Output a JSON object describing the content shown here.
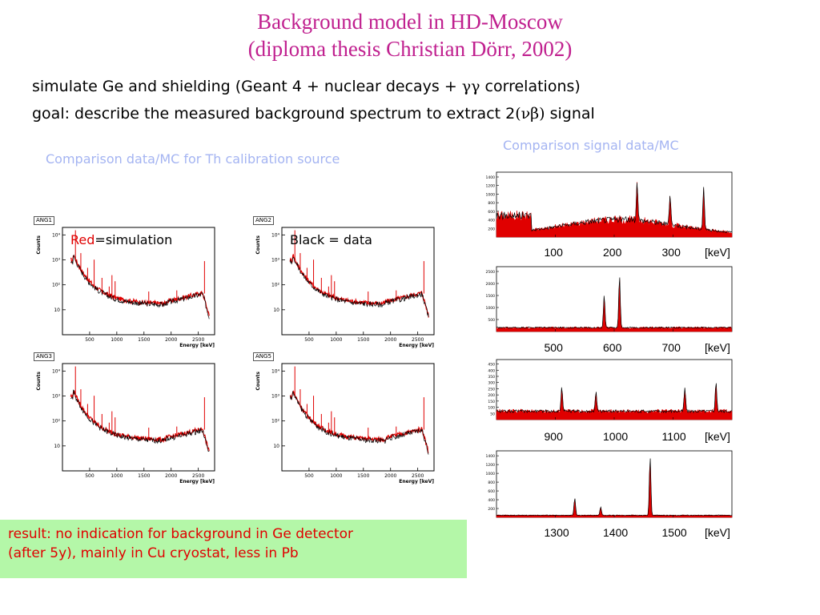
{
  "slide": {
    "title_line1": "Background model in HD-Moscow",
    "title_line2": "(diploma thesis Christian Dörr, 2002)",
    "line1_a": "simulate Ge and shielding (Geant 4 + nuclear decays + ",
    "line1_greek": "γγ",
    "line1_b": " correlations)",
    "line2_a": "goal: describe the measured background spectrum to extract 2",
    "line2_greek": "(νβ)",
    "line2_b": " signal",
    "caption_left": "Comparison data/MC for Th  calibration source",
    "caption_right": "Comparison signal data/MC",
    "legend_red_word": "Red",
    "legend_red_rest": "=simulation",
    "legend_black": "Black = data",
    "result_line1": "result: no indication for background in Ge detector",
    "result_line2": "(after 5y), mainly in Cu cryostat, less in Pb"
  },
  "colors": {
    "title": "#c0208f",
    "caption": "#a4b4f2",
    "simulation": "#e00000",
    "data": "#000000",
    "result_bg": "#b4f7a8"
  },
  "chart_data": [
    {
      "type": "line",
      "panel": "ANG1",
      "xlabel": "Energy [keV]",
      "ylabel": "Counts",
      "xticks": [
        "500",
        "1000",
        "1500",
        "2000",
        "2500"
      ],
      "yticks": [
        "10",
        "10²",
        "10³",
        "10⁴"
      ],
      "xlim": [
        0,
        2800
      ],
      "y_scale": "log",
      "series": [
        {
          "role": "simulation",
          "color": "#e00000"
        },
        {
          "role": "data",
          "color": "#000000"
        }
      ]
    },
    {
      "type": "line",
      "panel": "ANG2",
      "xlabel": "Energy [keV]",
      "ylabel": "Counts",
      "xticks": [
        "500",
        "1000",
        "1500",
        "2000",
        "2500"
      ],
      "yticks": [
        "10",
        "10²",
        "10³",
        "10⁴"
      ],
      "xlim": [
        0,
        2800
      ],
      "y_scale": "log"
    },
    {
      "type": "line",
      "panel": "ANG3",
      "xlabel": "Energy [keV]",
      "ylabel": "Counts",
      "xticks": [
        "500",
        "1000",
        "1500",
        "2000",
        "2500"
      ],
      "yticks": [
        "10",
        "10²",
        "10³",
        "10⁴"
      ],
      "xlim": [
        0,
        2800
      ],
      "y_scale": "log"
    },
    {
      "type": "line",
      "panel": "ANG5",
      "xlabel": "Energy [keV]",
      "ylabel": "Counts",
      "xticks": [
        "500",
        "1000",
        "1500",
        "2000",
        "2500"
      ],
      "yticks": [
        "10",
        "10²",
        "10³",
        "10⁴"
      ],
      "xlim": [
        0,
        2800
      ],
      "y_scale": "log"
    },
    {
      "type": "area",
      "panel": "range-1",
      "xlim": [
        0,
        400
      ],
      "xticks": [
        "100",
        "200",
        "300"
      ],
      "xunit": "[keV]",
      "yticks": [
        "200",
        "400",
        "600",
        "800",
        "1000",
        "1200",
        "1400"
      ],
      "peaks_keV": [
        239,
        295,
        352
      ]
    },
    {
      "type": "area",
      "panel": "range-2",
      "xlim": [
        400,
        800
      ],
      "xticks": [
        "500",
        "600",
        "700"
      ],
      "xunit": "[keV]",
      "yticks": [
        "500",
        "1000",
        "1500",
        "2000",
        "2500"
      ],
      "peaks_keV": [
        583,
        609
      ]
    },
    {
      "type": "area",
      "panel": "range-3",
      "xlim": [
        800,
        1200
      ],
      "xticks": [
        "900",
        "1000",
        "1100"
      ],
      "xunit": "[keV]",
      "yticks": [
        "50",
        "100",
        "150",
        "200",
        "250",
        "300",
        "350",
        "400",
        "450"
      ],
      "peaks_keV": [
        911,
        969,
        1120,
        1173
      ]
    },
    {
      "type": "area",
      "panel": "range-4",
      "xlim": [
        1200,
        1600
      ],
      "xticks": [
        "1300",
        "1400",
        "1500"
      ],
      "xunit": "[keV]",
      "yticks": [
        "200",
        "400",
        "600",
        "800",
        "1000",
        "1200",
        "1400"
      ],
      "peaks_keV": [
        1333,
        1377,
        1461
      ]
    }
  ]
}
